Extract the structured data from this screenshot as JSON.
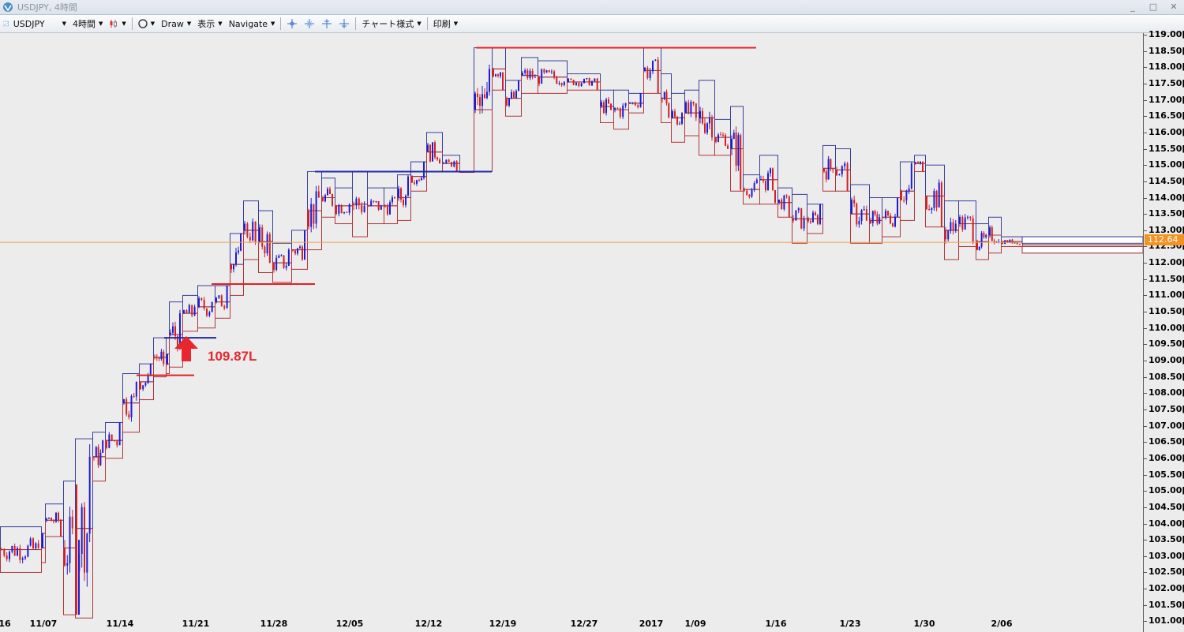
{
  "window": {
    "title": "USDJPY, 4時間",
    "minimize": "_",
    "maximize": "□",
    "close": "✕"
  },
  "toolbar": {
    "symbol": "USDJPY",
    "timeframe": "4時間",
    "draw": "Draw",
    "view": "表示",
    "navigate": "Navigate",
    "chart_style": "チャート様式",
    "print": "印刷"
  },
  "chart_data": {
    "type": "candlestick",
    "ylim": [
      100.9,
      119.1
    ],
    "y_ticks": [
      "119.00[0",
      "118.50[0",
      "118.00[0",
      "117.50[0",
      "117.00[0",
      "116.50[0",
      "116.00[0",
      "115.50[0",
      "115.00[0",
      "114.50[0",
      "114.00[0",
      "113.50[0",
      "113.00[0",
      "112.50[0",
      "112.00[0",
      "111.50[0",
      "111.00[0",
      "110.50[0",
      "110.00[0",
      "109.50[0",
      "109.00[0",
      "108.50[0",
      "108.00[0",
      "107.50[0",
      "107.00[0",
      "106.50[0",
      "106.00[0",
      "105.50[0",
      "105.00[0",
      "104.50[0",
      "104.00[0",
      "103.50[0",
      "103.00[0",
      "102.50[0",
      "102.00[0",
      "101.50[0",
      "101.00[0"
    ],
    "x_ticks": [
      "16",
      "11/07",
      "11/14",
      "11/21",
      "11/28",
      "12/05",
      "12/12",
      "12/19",
      "12/27",
      "2017",
      "1/09",
      "1/16",
      "1/23",
      "1/30",
      "2/06"
    ],
    "current_price": 112.64,
    "current_price_label": "112.64",
    "annotation": "109.87L",
    "daily_ranges": [
      [
        0,
        52,
        103.9,
        102.5
      ],
      [
        52,
        57,
        103.7,
        102.8
      ],
      [
        57,
        80,
        104.6,
        103.6
      ],
      [
        80,
        95,
        105.3,
        101.2
      ],
      [
        95,
        117,
        106.6,
        101.1
      ],
      [
        117,
        133,
        106.8,
        105.3
      ],
      [
        133,
        155,
        107.1,
        106.0
      ],
      [
        155,
        176,
        108.6,
        106.8
      ],
      [
        176,
        194,
        108.9,
        107.8
      ],
      [
        194,
        210,
        109.7,
        108.5
      ],
      [
        210,
        214,
        109.2,
        108.6
      ],
      [
        214,
        231,
        110.8,
        108.8
      ],
      [
        231,
        250,
        111.0,
        109.9
      ],
      [
        250,
        272,
        111.3,
        110.0
      ],
      [
        272,
        291,
        111.3,
        110.3
      ],
      [
        291,
        308,
        112.9,
        111.0
      ],
      [
        308,
        327,
        113.9,
        112.1
      ],
      [
        327,
        345,
        113.6,
        111.7
      ],
      [
        345,
        369,
        112.6,
        111.4
      ],
      [
        369,
        389,
        113.0,
        111.8
      ],
      [
        389,
        407,
        114.8,
        112.4
      ],
      [
        407,
        424,
        114.6,
        113.4
      ],
      [
        424,
        446,
        114.3,
        113.2
      ],
      [
        446,
        465,
        114.8,
        112.8
      ],
      [
        465,
        486,
        114.3,
        113.2
      ],
      [
        486,
        503,
        114.3,
        113.2
      ],
      [
        503,
        520,
        114.7,
        113.3
      ],
      [
        520,
        540,
        115.1,
        114.2
      ],
      [
        540,
        560,
        116.0,
        114.8
      ],
      [
        560,
        582,
        115.3,
        114.8
      ],
      [
        582,
        600,
        114.8,
        114.8
      ],
      [
        600,
        623,
        118.6,
        114.8
      ],
      [
        623,
        640,
        118.6,
        117.3
      ],
      [
        640,
        660,
        117.6,
        116.5
      ],
      [
        660,
        681,
        118.3,
        117.2
      ],
      [
        681,
        718,
        118.2,
        117.2
      ],
      [
        718,
        760,
        117.8,
        117.3
      ],
      [
        760,
        777,
        117.3,
        116.3
      ],
      [
        777,
        796,
        117.3,
        116.1
      ],
      [
        796,
        815,
        117.2,
        116.6
      ],
      [
        815,
        837,
        118.6,
        117.2
      ],
      [
        837,
        850,
        117.8,
        116.3
      ],
      [
        850,
        867,
        117.2,
        115.7
      ],
      [
        867,
        885,
        117.3,
        115.9
      ],
      [
        885,
        905,
        117.6,
        115.3
      ],
      [
        905,
        925,
        116.4,
        115.3
      ],
      [
        925,
        941,
        116.8,
        114.2
      ],
      [
        941,
        962,
        114.7,
        113.8
      ],
      [
        962,
        985,
        115.3,
        113.8
      ],
      [
        985,
        1003,
        114.3,
        113.4
      ],
      [
        1003,
        1022,
        114.1,
        112.6
      ],
      [
        1022,
        1042,
        113.8,
        112.9
      ],
      [
        1042,
        1058,
        115.6,
        114.2
      ],
      [
        1058,
        1077,
        115.5,
        114.2
      ],
      [
        1077,
        1101,
        114.4,
        112.6
      ],
      [
        1101,
        1117,
        114.0,
        112.6
      ],
      [
        1117,
        1140,
        114.0,
        112.8
      ],
      [
        1140,
        1158,
        115.1,
        113.3
      ],
      [
        1158,
        1172,
        115.3,
        114.8
      ],
      [
        1172,
        1196,
        115.0,
        113.1
      ],
      [
        1196,
        1214,
        113.9,
        112.1
      ],
      [
        1214,
        1236,
        113.9,
        112.5
      ],
      [
        1236,
        1252,
        113.2,
        112.1
      ],
      [
        1252,
        1268,
        113.4,
        112.3
      ],
      [
        1268,
        1295,
        112.8,
        112.5
      ],
      [
        1295,
        1448,
        112.8,
        112.3
      ]
    ],
    "lines": [
      {
        "color": "#e41f25",
        "x1": 603,
        "x2": 958,
        "y": 118.6
      },
      {
        "color": "#2228a8",
        "x1": 399,
        "x2": 623,
        "y": 114.8
      },
      {
        "color": "#e41f25",
        "x1": 268,
        "x2": 399,
        "y": 111.35
      },
      {
        "color": "#2228a8",
        "x1": 208,
        "x2": 274,
        "y": 109.7
      },
      {
        "color": "#e41f25",
        "x1": 173,
        "x2": 246,
        "y": 108.55
      }
    ],
    "price_line_color": "#f0a04a",
    "bull_color": "#1e1ad6",
    "bear_color": "#d42020"
  }
}
